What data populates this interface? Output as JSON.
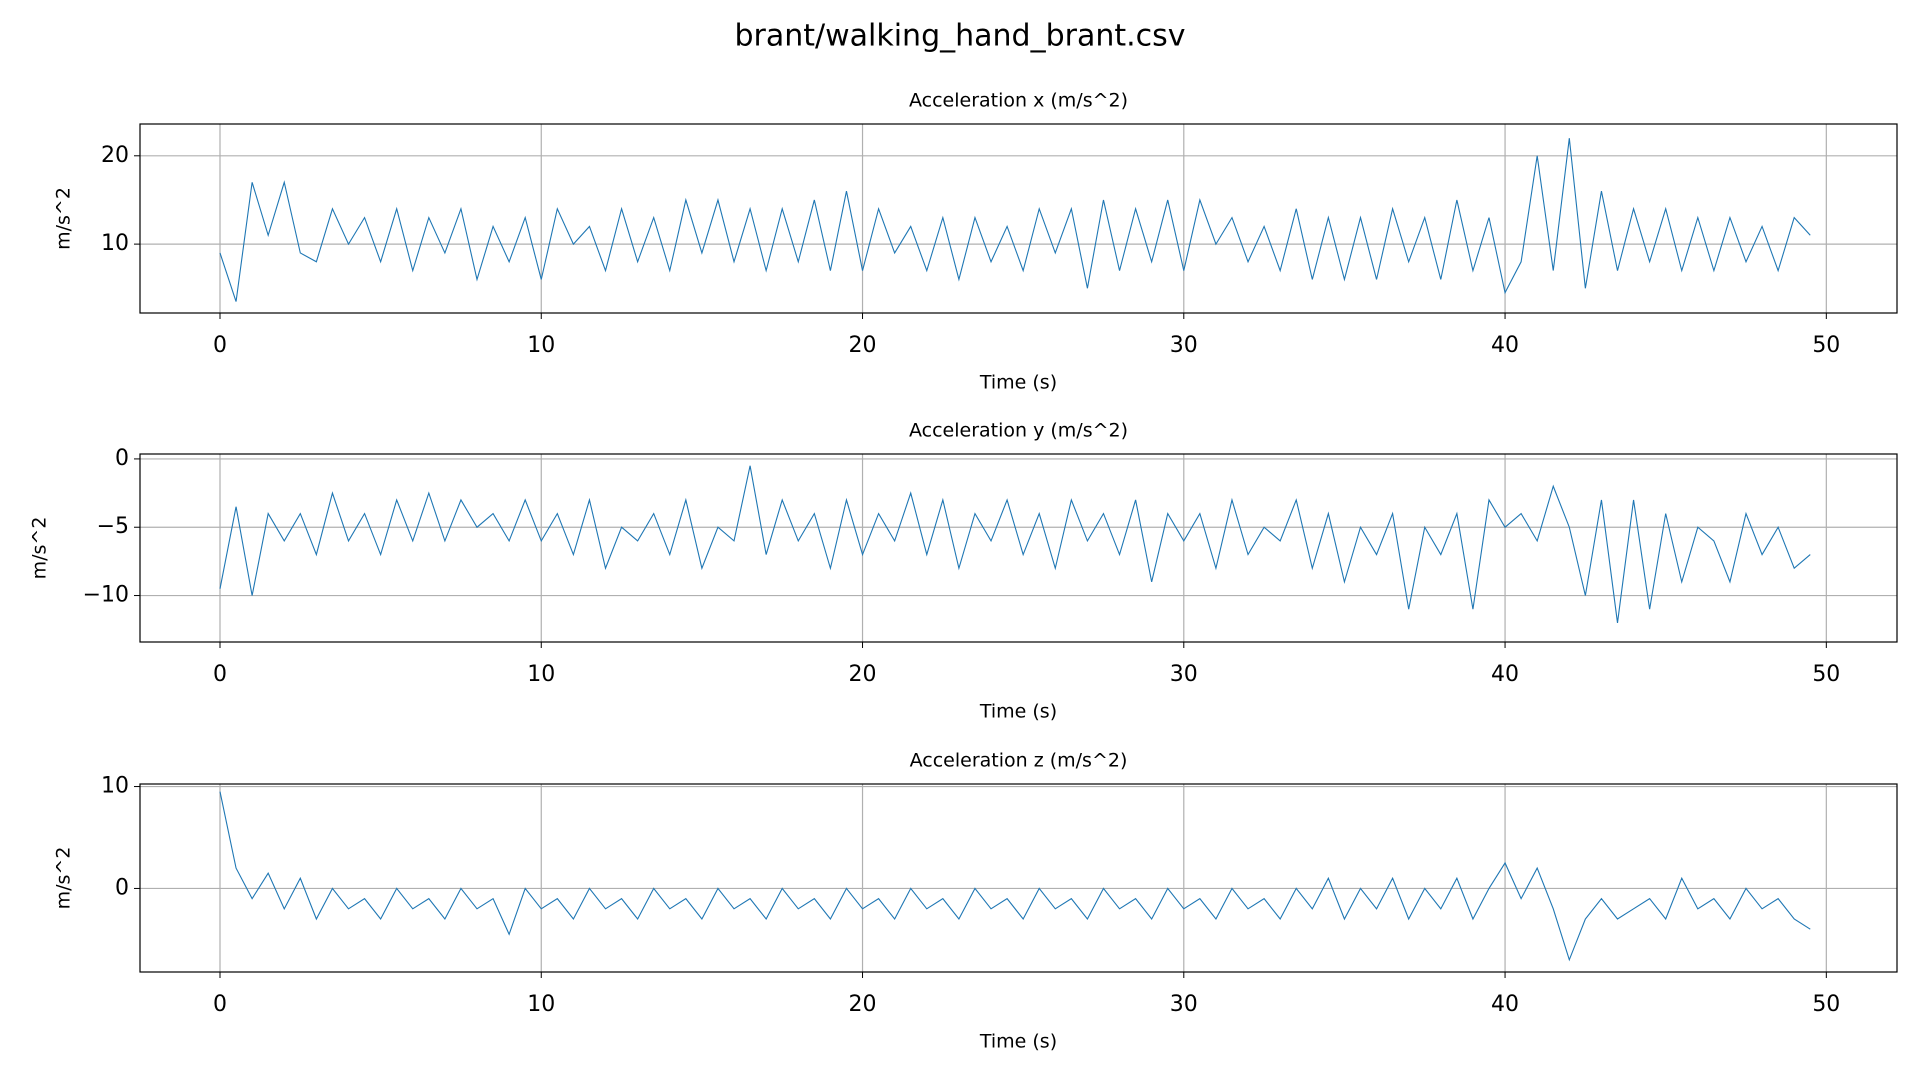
{
  "title": "brant/walking_hand_brant.csv",
  "chart_data": [
    {
      "type": "line",
      "title": "Acceleration x (m/s^2)",
      "xlabel": "Time (s)",
      "ylabel": "m/s^2",
      "x": [
        0,
        0.5,
        1,
        1.5,
        2,
        2.5,
        3,
        3.5,
        4,
        4.5,
        5,
        5.5,
        6,
        6.5,
        7,
        7.5,
        8,
        8.5,
        9,
        9.5,
        10,
        10.5,
        11,
        11.5,
        12,
        12.5,
        13,
        13.5,
        14,
        14.5,
        15,
        15.5,
        16,
        16.5,
        17,
        17.5,
        18,
        18.5,
        19,
        19.5,
        20,
        20.5,
        21,
        21.5,
        22,
        22.5,
        23,
        23.5,
        24,
        24.5,
        25,
        25.5,
        26,
        26.5,
        27,
        27.5,
        28,
        28.5,
        29,
        29.5,
        30,
        30.5,
        31,
        31.5,
        32,
        32.5,
        33,
        33.5,
        34,
        34.5,
        35,
        35.5,
        36,
        36.5,
        37,
        37.5,
        38,
        38.5,
        39,
        39.5,
        40,
        40.5,
        41,
        41.5,
        42,
        42.5,
        43,
        43.5,
        44,
        44.5,
        45,
        45.5,
        46,
        46.5,
        47,
        47.5,
        48,
        48.5,
        49,
        49.5
      ],
      "series": [
        {
          "color": "#1f77b4",
          "values": [
            9,
            3.5,
            17,
            11,
            17,
            9,
            8,
            14,
            10,
            13,
            8,
            14,
            7,
            13,
            9,
            14,
            6,
            12,
            8,
            13,
            6,
            14,
            10,
            12,
            7,
            14,
            8,
            13,
            7,
            15,
            9,
            15,
            8,
            14,
            7,
            14,
            8,
            15,
            7,
            16,
            7,
            14,
            9,
            12,
            7,
            13,
            6,
            13,
            8,
            12,
            7,
            14,
            9,
            14,
            5,
            15,
            7,
            14,
            8,
            15,
            7,
            15,
            10,
            13,
            8,
            12,
            7,
            14,
            6,
            13,
            6,
            13,
            6,
            14,
            8,
            13,
            6,
            15,
            7,
            13,
            4.5,
            8,
            20,
            7,
            22,
            5,
            16,
            7,
            14,
            8,
            14,
            7,
            13,
            7,
            13,
            8,
            12,
            7,
            13,
            11
          ]
        }
      ],
      "xlim": [
        -2.49,
        52.2
      ],
      "ylim": [
        2.2,
        23.6
      ],
      "xticks": [
        0,
        10,
        20,
        30,
        40,
        50
      ],
      "yticks": [
        10,
        20
      ],
      "grid": true
    },
    {
      "type": "line",
      "title": "Acceleration y (m/s^2)",
      "xlabel": "Time (s)",
      "ylabel": "m/s^2",
      "x": [
        0,
        0.5,
        1,
        1.5,
        2,
        2.5,
        3,
        3.5,
        4,
        4.5,
        5,
        5.5,
        6,
        6.5,
        7,
        7.5,
        8,
        8.5,
        9,
        9.5,
        10,
        10.5,
        11,
        11.5,
        12,
        12.5,
        13,
        13.5,
        14,
        14.5,
        15,
        15.5,
        16,
        16.5,
        17,
        17.5,
        18,
        18.5,
        19,
        19.5,
        20,
        20.5,
        21,
        21.5,
        22,
        22.5,
        23,
        23.5,
        24,
        24.5,
        25,
        25.5,
        26,
        26.5,
        27,
        27.5,
        28,
        28.5,
        29,
        29.5,
        30,
        30.5,
        31,
        31.5,
        32,
        32.5,
        33,
        33.5,
        34,
        34.5,
        35,
        35.5,
        36,
        36.5,
        37,
        37.5,
        38,
        38.5,
        39,
        39.5,
        40,
        40.5,
        41,
        41.5,
        42,
        42.5,
        43,
        43.5,
        44,
        44.5,
        45,
        45.5,
        46,
        46.5,
        47,
        47.5,
        48,
        48.5,
        49,
        49.5
      ],
      "series": [
        {
          "color": "#1f77b4",
          "values": [
            -9.5,
            -3.5,
            -10,
            -4,
            -6,
            -4,
            -7,
            -2.5,
            -6,
            -4,
            -7,
            -3,
            -6,
            -2.5,
            -6,
            -3,
            -5,
            -4,
            -6,
            -3,
            -6,
            -4,
            -7,
            -3,
            -8,
            -5,
            -6,
            -4,
            -7,
            -3,
            -8,
            -5,
            -6,
            -0.5,
            -7,
            -3,
            -6,
            -4,
            -8,
            -3,
            -7,
            -4,
            -6,
            -2.5,
            -7,
            -3,
            -8,
            -4,
            -6,
            -3,
            -7,
            -4,
            -8,
            -3,
            -6,
            -4,
            -7,
            -3,
            -9,
            -4,
            -6,
            -4,
            -8,
            -3,
            -7,
            -5,
            -6,
            -3,
            -8,
            -4,
            -9,
            -5,
            -7,
            -4,
            -11,
            -5,
            -7,
            -4,
            -11,
            -3,
            -5,
            -4,
            -6,
            -2,
            -5,
            -10,
            -3,
            -12,
            -3,
            -11,
            -4,
            -9,
            -5,
            -6,
            -9,
            -4,
            -7,
            -5,
            -8,
            -7
          ]
        }
      ],
      "xlim": [
        -2.49,
        52.2
      ],
      "ylim": [
        -13.4,
        0.36
      ],
      "xticks": [
        0,
        10,
        20,
        30,
        40,
        50
      ],
      "yticks": [
        {
          "value": -10,
          "label": "−10"
        },
        {
          "value": -5,
          "label": "−5"
        },
        0
      ],
      "grid": true
    },
    {
      "type": "line",
      "title": "Acceleration z (m/s^2)",
      "xlabel": "Time (s)",
      "ylabel": "m/s^2",
      "x": [
        0,
        0.5,
        1,
        1.5,
        2,
        2.5,
        3,
        3.5,
        4,
        4.5,
        5,
        5.5,
        6,
        6.5,
        7,
        7.5,
        8,
        8.5,
        9,
        9.5,
        10,
        10.5,
        11,
        11.5,
        12,
        12.5,
        13,
        13.5,
        14,
        14.5,
        15,
        15.5,
        16,
        16.5,
        17,
        17.5,
        18,
        18.5,
        19,
        19.5,
        20,
        20.5,
        21,
        21.5,
        22,
        22.5,
        23,
        23.5,
        24,
        24.5,
        25,
        25.5,
        26,
        26.5,
        27,
        27.5,
        28,
        28.5,
        29,
        29.5,
        30,
        30.5,
        31,
        31.5,
        32,
        32.5,
        33,
        33.5,
        34,
        34.5,
        35,
        35.5,
        36,
        36.5,
        37,
        37.5,
        38,
        38.5,
        39,
        39.5,
        40,
        40.5,
        41,
        41.5,
        42,
        42.5,
        43,
        43.5,
        44,
        44.5,
        45,
        45.5,
        46,
        46.5,
        47,
        47.5,
        48,
        48.5,
        49,
        49.5
      ],
      "series": [
        {
          "color": "#1f77b4",
          "values": [
            9.5,
            2,
            -1,
            1.5,
            -2,
            1,
            -3,
            0,
            -2,
            -1,
            -3,
            0,
            -2,
            -1,
            -3,
            0,
            -2,
            -1,
            -4.5,
            0,
            -2,
            -1,
            -3,
            0,
            -2,
            -1,
            -3,
            0,
            -2,
            -1,
            -3,
            0,
            -2,
            -1,
            -3,
            0,
            -2,
            -1,
            -3,
            0,
            -2,
            -1,
            -3,
            0,
            -2,
            -1,
            -3,
            0,
            -2,
            -1,
            -3,
            0,
            -2,
            -1,
            -3,
            0,
            -2,
            -1,
            -3,
            0,
            -2,
            -1,
            -3,
            0,
            -2,
            -1,
            -3,
            0,
            -2,
            1,
            -3,
            0,
            -2,
            1,
            -3,
            0,
            -2,
            1,
            -3,
            0,
            2.5,
            -1,
            2,
            -2,
            -7,
            -3,
            -1,
            -3,
            -2,
            -1,
            -3,
            1,
            -2,
            -1,
            -3,
            0,
            -2,
            -1,
            -3,
            -4
          ]
        }
      ],
      "xlim": [
        -2.49,
        52.2
      ],
      "ylim": [
        -8.2,
        10.25
      ],
      "xticks": [
        0,
        10,
        20,
        30,
        40,
        50
      ],
      "yticks": [
        0,
        10
      ],
      "grid": true
    }
  ]
}
